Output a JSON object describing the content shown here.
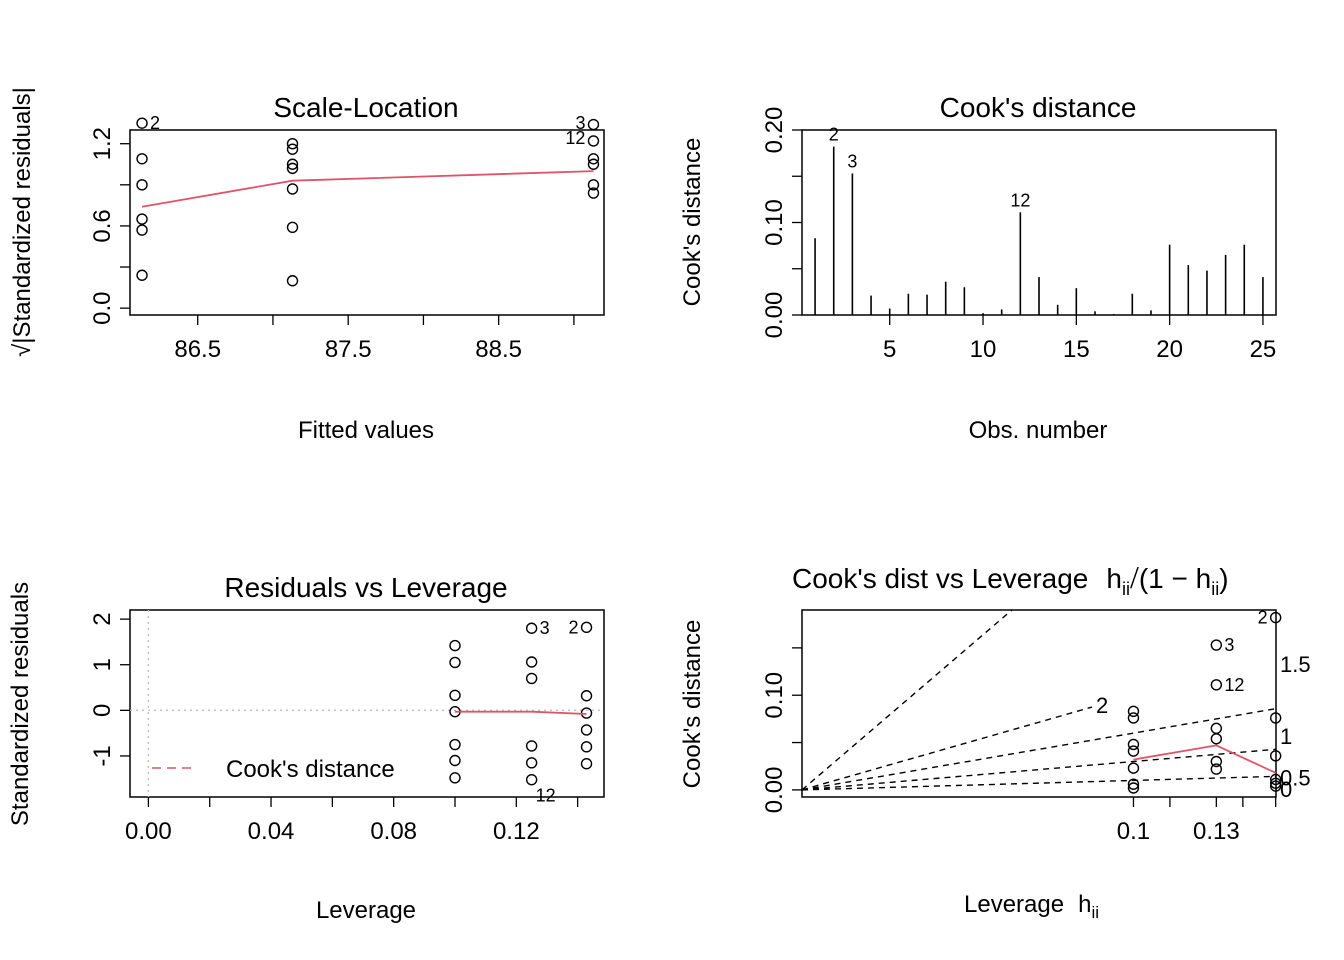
{
  "colors": {
    "smooth": "#DF536B",
    "reference": "#BEBEBE",
    "ink": "#000000"
  },
  "chart_data": [
    {
      "type": "scatter",
      "title": "Scale-Location",
      "xlabel": "Fitted values",
      "ylabel_radical": "√",
      "ylabel": "|Standardized residuals|",
      "xlim": [
        86.05,
        89.2
      ],
      "ylim": [
        -0.05,
        1.3
      ],
      "xticks": [
        "86.5",
        "87.5",
        "88.5"
      ],
      "yticks": [
        "0.0",
        "0.6",
        "1.2"
      ],
      "points": [
        {
          "x": 86.13,
          "y": 1.35
        },
        {
          "x": 86.13,
          "y": 1.09
        },
        {
          "x": 86.13,
          "y": 0.9
        },
        {
          "x": 86.13,
          "y": 0.65
        },
        {
          "x": 86.13,
          "y": 0.57
        },
        {
          "x": 86.13,
          "y": 0.24
        },
        {
          "x": 87.13,
          "y": 1.2
        },
        {
          "x": 87.13,
          "y": 1.16
        },
        {
          "x": 87.13,
          "y": 1.05
        },
        {
          "x": 87.13,
          "y": 1.02
        },
        {
          "x": 87.13,
          "y": 0.87
        },
        {
          "x": 87.13,
          "y": 0.59
        },
        {
          "x": 87.13,
          "y": 0.2
        },
        {
          "x": 89.13,
          "y": 1.34
        },
        {
          "x": 89.13,
          "y": 1.22
        },
        {
          "x": 89.13,
          "y": 1.09
        },
        {
          "x": 89.13,
          "y": 1.05
        },
        {
          "x": 89.13,
          "y": 0.9
        },
        {
          "x": 89.13,
          "y": 0.84
        }
      ],
      "smooth": [
        {
          "x": 86.13,
          "y": 0.74
        },
        {
          "x": 87.13,
          "y": 0.93
        },
        {
          "x": 89.13,
          "y": 1.0
        }
      ],
      "labels": [
        {
          "text": "2",
          "x": 86.13,
          "y": 1.35,
          "side": "right"
        },
        {
          "text": "3",
          "x": 89.13,
          "y": 1.35,
          "side": "left"
        },
        {
          "text": "12",
          "x": 89.13,
          "y": 1.24,
          "side": "left"
        }
      ]
    },
    {
      "type": "bar",
      "title": "Cook's distance",
      "xlabel": "Obs. number",
      "ylabel": "Cook's distance",
      "xlim": [
        0.3,
        25.7
      ],
      "ylim": [
        0.0,
        0.2
      ],
      "xticks": [
        "5",
        "10",
        "15",
        "20",
        "25"
      ],
      "yticks": [
        "0.00",
        "0.10",
        "0.20"
      ],
      "x": [
        1,
        2,
        3,
        4,
        5,
        6,
        7,
        8,
        9,
        10,
        11,
        12,
        13,
        14,
        15,
        16,
        17,
        18,
        19,
        20,
        21,
        22,
        23,
        24,
        25
      ],
      "values": [
        0.083,
        0.182,
        0.153,
        0.021,
        0.007,
        0.023,
        0.022,
        0.036,
        0.03,
        0.002,
        0.006,
        0.111,
        0.041,
        0.011,
        0.029,
        0.004,
        0.001,
        0.023,
        0.005,
        0.076,
        0.054,
        0.048,
        0.065,
        0.076,
        0.041
      ],
      "labels": [
        {
          "text": "2",
          "x": 2,
          "y": 0.182
        },
        {
          "text": "3",
          "x": 3,
          "y": 0.153
        },
        {
          "text": "12",
          "x": 12,
          "y": 0.111
        }
      ]
    },
    {
      "type": "scatter",
      "title": "Residuals vs Leverage",
      "xlabel": "Leverage",
      "ylabel": "Standardized residuals",
      "xlim": [
        -0.006,
        0.1486
      ],
      "ylim": [
        -1.9,
        2.2
      ],
      "xticks": [
        "0.00",
        "0.04",
        "0.08",
        "0.12"
      ],
      "yticks": [
        "-1",
        "0",
        "1",
        "2"
      ],
      "points": [
        {
          "x": 0.1,
          "y": 1.42
        },
        {
          "x": 0.1,
          "y": 1.05
        },
        {
          "x": 0.1,
          "y": 0.33
        },
        {
          "x": 0.1,
          "y": -0.03
        },
        {
          "x": 0.1,
          "y": -0.75
        },
        {
          "x": 0.1,
          "y": -1.1
        },
        {
          "x": 0.1,
          "y": -1.48
        },
        {
          "x": 0.125,
          "y": 1.8
        },
        {
          "x": 0.125,
          "y": 1.06
        },
        {
          "x": 0.125,
          "y": 0.7
        },
        {
          "x": 0.125,
          "y": -0.78
        },
        {
          "x": 0.125,
          "y": -1.15
        },
        {
          "x": 0.125,
          "y": -1.52
        },
        {
          "x": 0.1429,
          "y": 1.82
        },
        {
          "x": 0.1429,
          "y": 0.32
        },
        {
          "x": 0.1429,
          "y": -0.06
        },
        {
          "x": 0.1429,
          "y": -0.43
        },
        {
          "x": 0.1429,
          "y": -0.8
        },
        {
          "x": 0.1429,
          "y": -1.17
        }
      ],
      "smooth": [
        {
          "x": 0.1,
          "y": -0.03
        },
        {
          "x": 0.125,
          "y": -0.03
        },
        {
          "x": 0.1429,
          "y": -0.08
        }
      ],
      "labels": [
        {
          "text": "3",
          "x": 0.125,
          "y": 1.8,
          "side": "right"
        },
        {
          "text": "2",
          "x": 0.1429,
          "y": 1.82,
          "side": "left"
        },
        {
          "text": "12",
          "x": 0.125,
          "y": -1.52,
          "side": "below"
        }
      ],
      "legend": {
        "entry": "Cook's distance",
        "placement": "bottom-left",
        "line": "dashed"
      }
    },
    {
      "type": "scatter",
      "title": "Cook's dist vs Leverage",
      "title_formula": {
        "h": "h",
        "sub": "ii",
        "slash": "/",
        "open": "(1 − ",
        "close": ")"
      },
      "xlabel": "Leverage",
      "xlabel_symbol": {
        "h": "h",
        "sub": "ii"
      },
      "ylabel": "Cook's distance",
      "xlim": [
        0.0,
        0.143
      ],
      "ylim": [
        -0.0075,
        0.19
      ],
      "xticks": [
        {
          "value": 0.1,
          "label": "0.1"
        },
        {
          "value": 0.125,
          "label": "0.13"
        }
      ],
      "xticks_unlabeled": [
        0.111,
        0.133,
        0.1429
      ],
      "yticks": [
        "0.00",
        "0.10"
      ],
      "yticks_unlabeled": [
        0.05,
        0.15
      ],
      "points": [
        {
          "x": 0.1,
          "y": 0.083
        },
        {
          "x": 0.1,
          "y": 0.076
        },
        {
          "x": 0.1,
          "y": 0.048
        },
        {
          "x": 0.1,
          "y": 0.041
        },
        {
          "x": 0.1,
          "y": 0.023
        },
        {
          "x": 0.1,
          "y": 0.006
        },
        {
          "x": 0.1,
          "y": 0.002
        },
        {
          "x": 0.125,
          "y": 0.153
        },
        {
          "x": 0.125,
          "y": 0.111
        },
        {
          "x": 0.125,
          "y": 0.065
        },
        {
          "x": 0.125,
          "y": 0.054
        },
        {
          "x": 0.125,
          "y": 0.03
        },
        {
          "x": 0.125,
          "y": 0.022
        },
        {
          "x": 0.1429,
          "y": 0.182
        },
        {
          "x": 0.1429,
          "y": 0.076
        },
        {
          "x": 0.1429,
          "y": 0.036
        },
        {
          "x": 0.1429,
          "y": 0.011
        },
        {
          "x": 0.1429,
          "y": 0.007
        },
        {
          "x": 0.1429,
          "y": 0.004
        }
      ],
      "smooth": [
        {
          "x": 0.1,
          "y": 0.032
        },
        {
          "x": 0.125,
          "y": 0.047
        },
        {
          "x": 0.1429,
          "y": 0.018
        }
      ],
      "contours": [
        {
          "slope": 3.0
        },
        {
          "slope": 1.0,
          "label": "2",
          "inside": true
        },
        {
          "slope": 0.6
        },
        {
          "slope": 0.3
        },
        {
          "slope": 0.1
        }
      ],
      "contour_labels": [
        {
          "text": "1.5",
          "y": 0.133
        },
        {
          "text": "1",
          "y": 0.057
        },
        {
          "text": "0.5",
          "y": 0.013
        },
        {
          "text": "0",
          "y": 0.001
        }
      ],
      "labels": [
        {
          "text": "3",
          "x": 0.125,
          "y": 0.153,
          "side": "right"
        },
        {
          "text": "2",
          "x": 0.1429,
          "y": 0.182,
          "side": "left"
        },
        {
          "text": "12",
          "x": 0.125,
          "y": 0.111,
          "side": "right"
        }
      ]
    }
  ]
}
